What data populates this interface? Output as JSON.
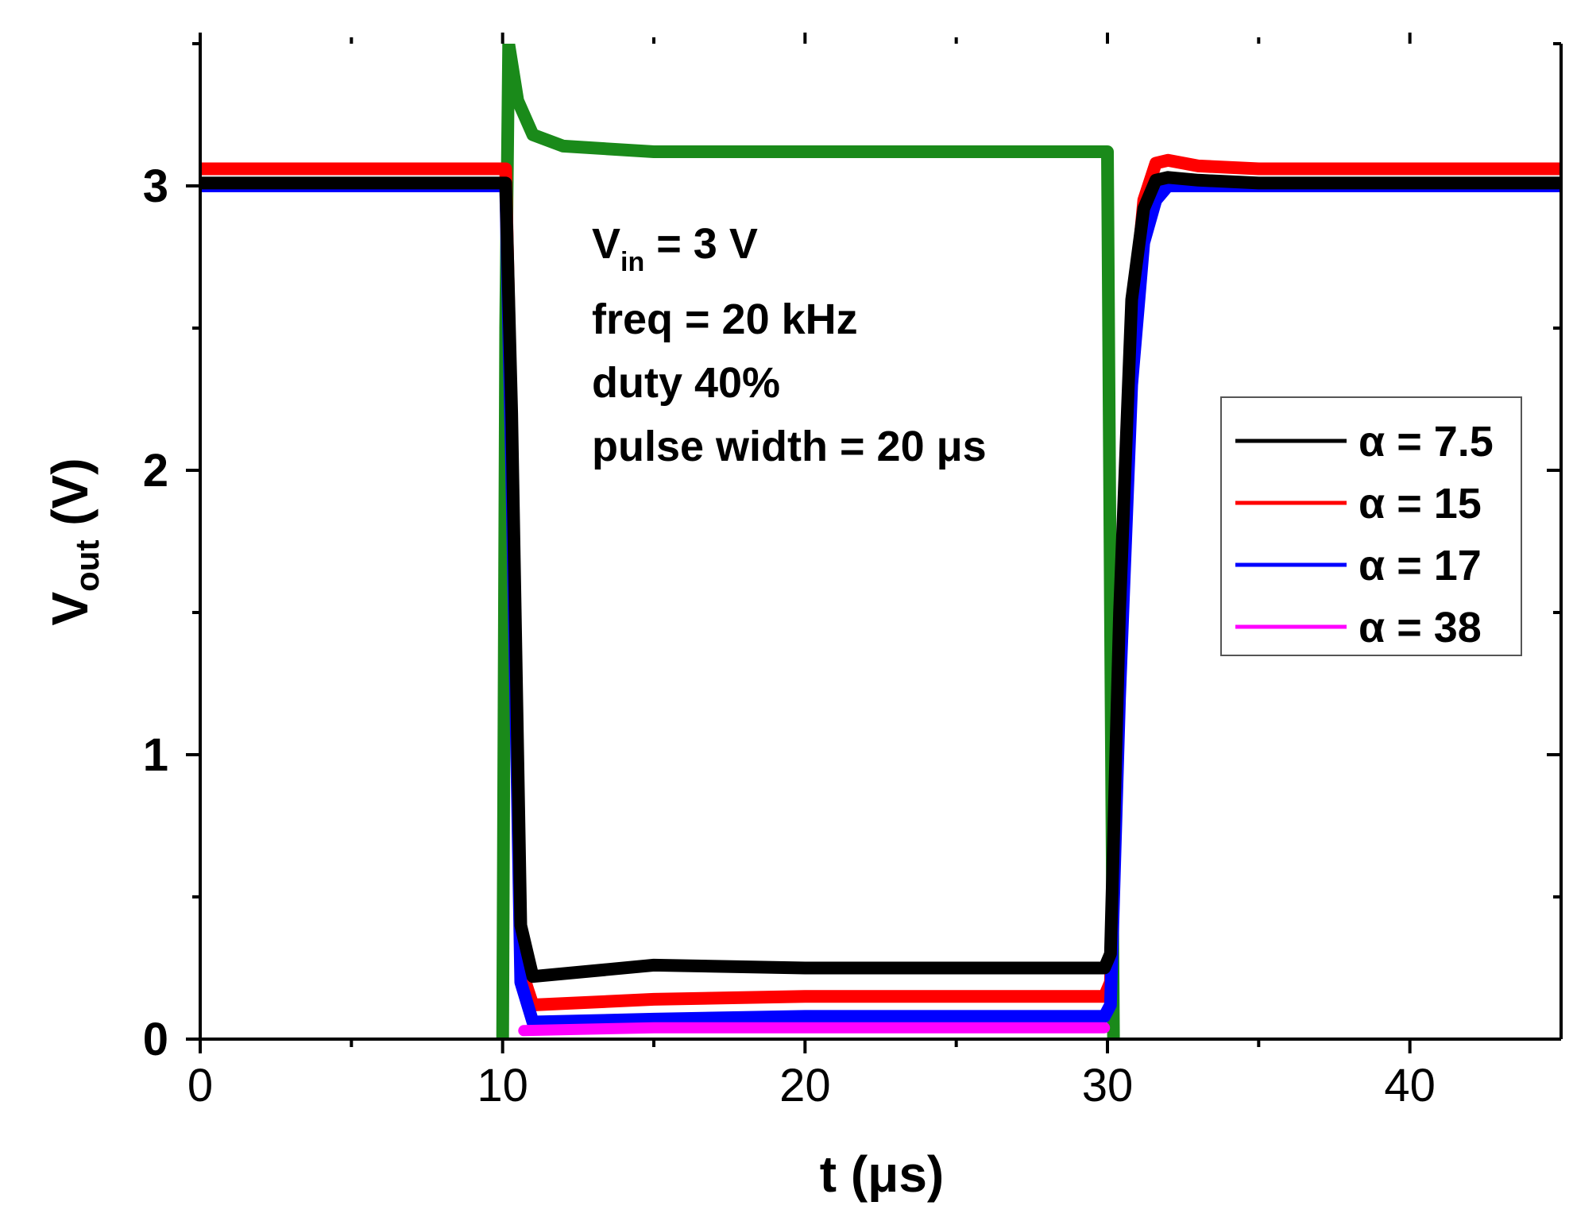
{
  "chart_data": {
    "type": "line",
    "xlabel": "t (μs)",
    "ylabel_main": "V",
    "ylabel_sub": "out",
    "ylabel_unit": " (V)",
    "xlim": [
      0,
      45
    ],
    "ylim": [
      0,
      3.5
    ],
    "xticks": [
      0,
      10,
      20,
      30,
      40
    ],
    "xtick_labels": [
      "0",
      "10",
      "20",
      "30",
      "40"
    ],
    "yticks": [
      0,
      1,
      2,
      3
    ],
    "ytick_labels": [
      "0",
      "1",
      "2",
      "3"
    ],
    "x_minor_step": 5,
    "y_minor_step": 0.5,
    "grid": false,
    "annotation": {
      "line1_main": "V",
      "line1_sub": "in",
      "line1_rest": " = 3 V",
      "line2": "freq = 20 kHz",
      "line3": "duty 40%",
      "line4": "pulse width = 20 μs"
    },
    "legend_position": "right-middle",
    "series": [
      {
        "name": "α = 7.5",
        "color": "#000000",
        "x": [
          0,
          10.1,
          10.3,
          10.6,
          11.0,
          15,
          20,
          25,
          29.9,
          30.1,
          30.4,
          30.8,
          31.2,
          31.6,
          32.0,
          33,
          35,
          40,
          45
        ],
        "y": [
          3.01,
          3.01,
          2.2,
          0.4,
          0.22,
          0.26,
          0.25,
          0.25,
          0.25,
          0.3,
          1.5,
          2.6,
          2.92,
          3.02,
          3.03,
          3.02,
          3.01,
          3.01,
          3.01
        ]
      },
      {
        "name": "α = 15",
        "color": "#ff0000",
        "x": [
          0,
          10.1,
          10.3,
          10.6,
          11.0,
          15,
          20,
          25,
          29.9,
          30.1,
          30.4,
          30.8,
          31.2,
          31.6,
          32.0,
          33,
          35,
          40,
          45
        ],
        "y": [
          3.06,
          3.06,
          2.1,
          0.25,
          0.12,
          0.14,
          0.15,
          0.15,
          0.15,
          0.2,
          1.4,
          2.5,
          2.95,
          3.08,
          3.09,
          3.07,
          3.06,
          3.06,
          3.06
        ]
      },
      {
        "name": "α = 17",
        "color": "#0000ff",
        "x": [
          0,
          10.1,
          10.3,
          10.6,
          11.0,
          15,
          20,
          25,
          29.9,
          30.1,
          30.4,
          30.8,
          31.2,
          31.6,
          32.0,
          33,
          35,
          40,
          45
        ],
        "y": [
          3.0,
          3.0,
          2.0,
          0.2,
          0.06,
          0.07,
          0.08,
          0.08,
          0.08,
          0.12,
          1.2,
          2.3,
          2.8,
          2.95,
          3.0,
          3.0,
          3.0,
          3.0,
          3.0
        ]
      },
      {
        "name": "α = 38",
        "color": "#ff00ff",
        "x": [
          10.7,
          15,
          20,
          25,
          29.9
        ],
        "y": [
          0.03,
          0.04,
          0.04,
          0.04,
          0.04
        ]
      },
      {
        "name": "",
        "color": "#1a8a1a",
        "x": [
          10.0,
          10.1,
          10.2,
          10.5,
          11.0,
          12,
          15,
          20,
          25,
          30.0,
          30.1,
          30.2
        ],
        "y": [
          0.0,
          2.5,
          3.5,
          3.3,
          3.18,
          3.14,
          3.12,
          3.12,
          3.12,
          3.12,
          1.5,
          0.0
        ]
      }
    ]
  }
}
